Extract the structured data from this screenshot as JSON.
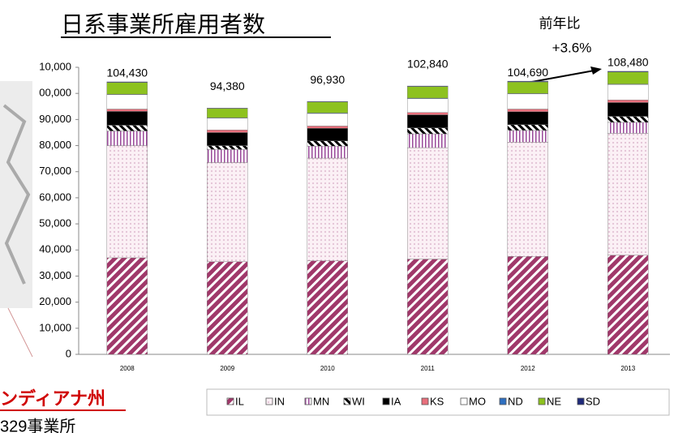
{
  "chart_data": {
    "type": "stacked_bar",
    "title": "日系事業所雇用者数",
    "annotations": [
      "前年比",
      "+3.6%",
      "ンディアナ州",
      "329事業所"
    ],
    "categories": [
      "2008",
      "2009",
      "2010",
      "2011",
      "2012",
      "2013"
    ],
    "totals": [
      104430,
      94380,
      96930,
      102840,
      104690,
      108480
    ],
    "value_labels": [
      "104,430",
      "94,380",
      "96,930",
      "102,840",
      "104,690",
      "108,480"
    ],
    "series": [
      {
        "name": "IL",
        "color": "#a0386a",
        "values": [
          37000,
          35500,
          35800,
          36500,
          37500,
          38000
        ]
      },
      {
        "name": "IN",
        "color": "#f6e4ee",
        "values": [
          43000,
          38000,
          39400,
          42700,
          43800,
          46700
        ]
      },
      {
        "name": "MN",
        "color": "#c9a0d0",
        "values": [
          5600,
          5000,
          4600,
          5300,
          4500,
          4200
        ]
      },
      {
        "name": "WI",
        "color": "#444444",
        "values": [
          2200,
          1500,
          2000,
          2300,
          2200,
          2300
        ]
      },
      {
        "name": "IA",
        "color": "#000000",
        "values": [
          5300,
          5000,
          4800,
          5000,
          5000,
          5300
        ]
      },
      {
        "name": "KS",
        "color": "#e86f7c",
        "values": [
          900,
          1000,
          900,
          900,
          1000,
          1000
        ]
      },
      {
        "name": "MO",
        "color": "#ffffff",
        "values": [
          5500,
          4500,
          4800,
          5300,
          5800,
          5900
        ]
      },
      {
        "name": "ND",
        "color": "#2e6fc0",
        "values": [
          200,
          200,
          200,
          200,
          200,
          200
        ]
      },
      {
        "name": "NE",
        "color": "#8dc21f",
        "values": [
          4500,
          3500,
          4200,
          4400,
          4400,
          4600
        ]
      },
      {
        "name": "SD",
        "color": "#1f2a7a",
        "values": [
          230,
          180,
          230,
          240,
          290,
          280
        ]
      }
    ],
    "ylim": [
      0,
      110000
    ],
    "yticks": [
      0,
      {
        "value": 10000,
        "label": "10,000"
      },
      {
        "value": 20000,
        "label": "20,000"
      },
      {
        "value": 30000,
        "label": "30,000"
      },
      {
        "value": 40000,
        "label": "40,000"
      },
      {
        "value": 50000,
        "label": "50,000"
      },
      {
        "value": 60000,
        "label": "60,000"
      },
      {
        "value": 70000,
        "label": "70,000"
      },
      {
        "value": 80000,
        "label": "80,000"
      },
      {
        "value": 90000,
        "label": "90,000"
      },
      {
        "value": 100000,
        "label": "00,000"
      },
      {
        "value": 110000,
        "label": "10,000"
      }
    ],
    "legend": "bottom"
  }
}
